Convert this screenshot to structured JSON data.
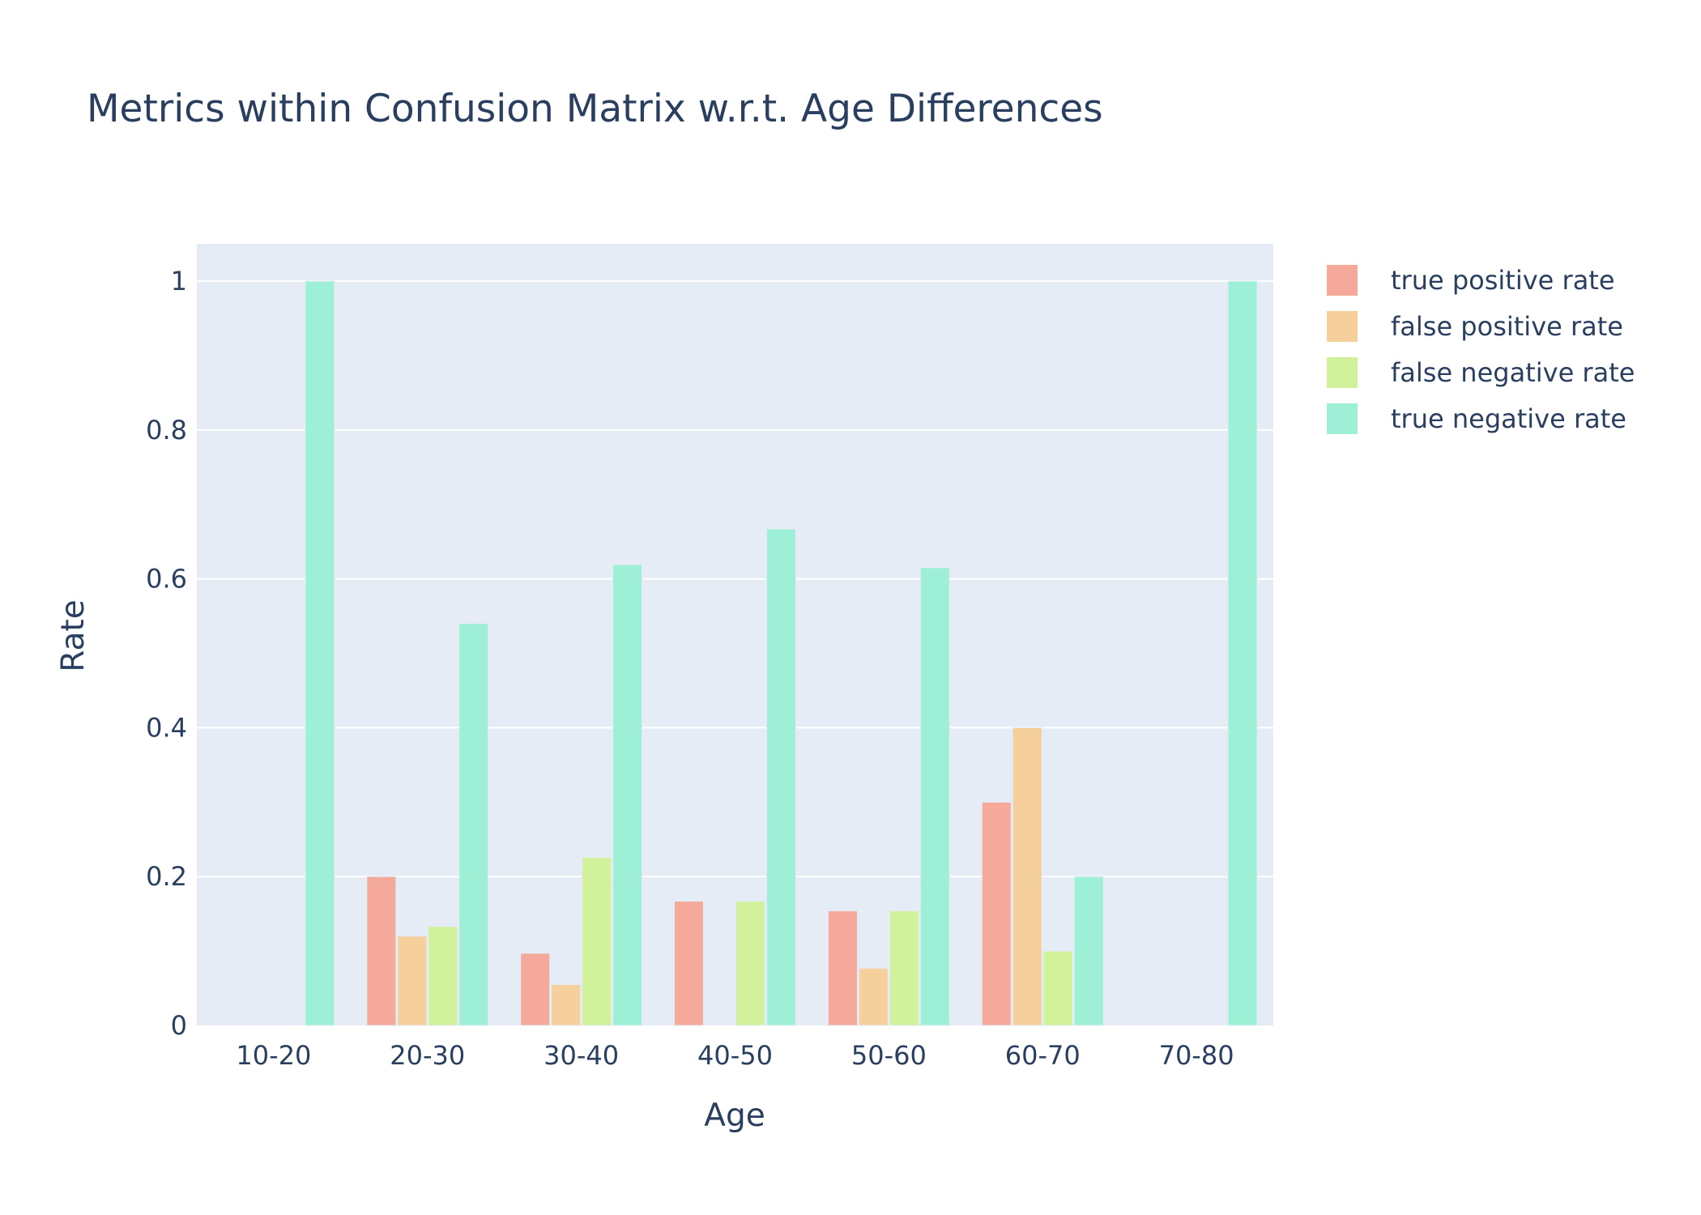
{
  "chart_data": {
    "type": "bar",
    "title": "Metrics within Confusion Matrix w.r.t. Age Differences",
    "xlabel": "Age",
    "ylabel": "Rate",
    "categories": [
      "10-20",
      "20-30",
      "30-40",
      "40-50",
      "50-60",
      "60-70",
      "70-80"
    ],
    "ylim": [
      0,
      1.05
    ],
    "yticks": [
      0,
      0.2,
      0.4,
      0.6,
      0.8,
      1
    ],
    "ytick_labels": [
      "0",
      "0.2",
      "0.4",
      "0.6",
      "0.8",
      "1"
    ],
    "grid": true,
    "legend_position": "top-right",
    "bar_mode": "grouped",
    "plot_background": "#e5ecf6",
    "grid_color": "#ffffff",
    "series": [
      {
        "name": "true positive rate",
        "color": "#f4a99b",
        "values": [
          0,
          0.2,
          0.097,
          0.167,
          0.154,
          0.3,
          0
        ]
      },
      {
        "name": "false positive rate",
        "color": "#f5cf9c",
        "values": [
          0,
          0.12,
          0.055,
          0,
          0.077,
          0.4,
          0
        ]
      },
      {
        "name": "false negative rate",
        "color": "#d1f29b",
        "values": [
          0,
          0.133,
          0.226,
          0.167,
          0.154,
          0.1,
          0
        ]
      },
      {
        "name": "true negative rate",
        "color": "#9df0d6",
        "values": [
          1,
          0.54,
          0.619,
          0.667,
          0.615,
          0.2,
          1
        ]
      }
    ]
  }
}
